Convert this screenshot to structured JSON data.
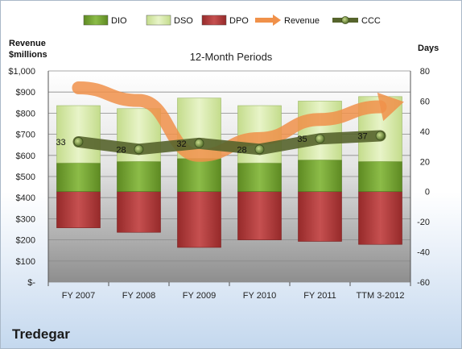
{
  "company": "Tredegar",
  "chart_data": {
    "type": "bar",
    "title": "12-Month Periods",
    "left_axis_title_line1": "Revenue",
    "left_axis_title_line2": "$millions",
    "right_axis_title": "Days",
    "legend_position": "top",
    "categories": [
      "FY 2007",
      "FY 2008",
      "FY 2009",
      "FY 2010",
      "FY 2011",
      "TTM 3-2012"
    ],
    "left_axis": {
      "min": 0,
      "max": 1000,
      "step": 100,
      "tick_labels": [
        "$-",
        "$100",
        "$200",
        "$300",
        "$400",
        "$500",
        "$600",
        "$700",
        "$800",
        "$900",
        "$1,000"
      ]
    },
    "right_axis": {
      "min": -60,
      "max": 80,
      "step": 20,
      "tick_labels": [
        "-60",
        "-40",
        "-20",
        "0",
        "20",
        "40",
        "60",
        "80"
      ]
    },
    "series": [
      {
        "name": "DIO",
        "kind": "stacked-bar",
        "color": "#6e9a2c",
        "values": [
          19,
          20,
          22,
          19,
          21,
          20
        ]
      },
      {
        "name": "DSO",
        "kind": "stacked-bar",
        "color": "#d4e8a8",
        "values": [
          38,
          35,
          40,
          38,
          39,
          43
        ]
      },
      {
        "name": "DPO",
        "kind": "negative-bar",
        "color": "#b03a3a",
        "values": [
          -24,
          -27,
          -37,
          -32,
          -33,
          -35
        ]
      },
      {
        "name": "Revenue",
        "kind": "arrow-line",
        "axis": "left",
        "color": "#f0914a",
        "values": [
          920,
          860,
          600,
          680,
          770,
          830
        ]
      },
      {
        "name": "CCC",
        "kind": "line-markers",
        "axis": "right",
        "color": "#56642c",
        "values": [
          33,
          28,
          32,
          28,
          35,
          37
        ],
        "labels": [
          "33",
          "28",
          "32",
          "28",
          "35",
          "37"
        ]
      }
    ]
  }
}
